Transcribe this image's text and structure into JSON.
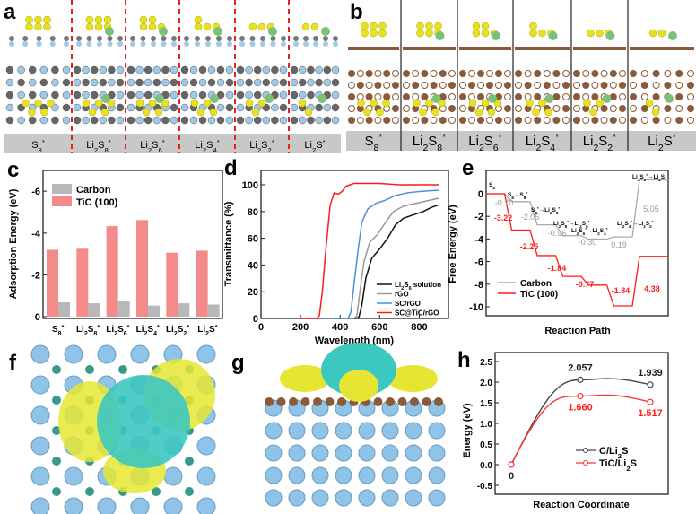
{
  "panel_labels": [
    "a",
    "b",
    "c",
    "d",
    "e",
    "f",
    "g",
    "h"
  ],
  "structures": {
    "a_labels": [
      "S8*",
      "Li2S8*",
      "Li2S6*",
      "Li2S4*",
      "Li2S2*",
      "Li2S*"
    ],
    "b_labels": [
      "S8*",
      "Li2S8*",
      "Li2S6*",
      "Li2S4*",
      "Li2S2*",
      "Li2S*"
    ]
  },
  "chart_data": [
    {
      "id": "c",
      "type": "bar",
      "categories": [
        "S8*",
        "Li2S8*",
        "Li2S6*",
        "Li2S4*",
        "Li2S2*",
        "Li2S*"
      ],
      "series": [
        {
          "name": "Carbon",
          "values": [
            -0.69,
            -0.64,
            -0.73,
            -0.53,
            -0.64,
            -0.58
          ],
          "color": "#b8b8b8"
        },
        {
          "name": "TiC (100)",
          "values": [
            -3.2,
            -3.25,
            -4.33,
            -4.62,
            -3.06,
            -3.16
          ],
          "color": "#f48a8a"
        }
      ],
      "ylabel": "Adsorption Energy (eV)",
      "ylim": [
        0,
        -7
      ],
      "yticks": [
        "-6",
        "-4",
        "-2",
        "0"
      ],
      "legend": "top-left"
    },
    {
      "id": "d",
      "type": "line",
      "xlabel": "Wavelength (nm)",
      "ylabel": "Transmittance (%)",
      "xlim": [
        0,
        900
      ],
      "ylim": [
        0,
        105
      ],
      "xticks": [
        "0",
        "200",
        "400",
        "600",
        "800"
      ],
      "yticks": [
        "0",
        "20",
        "40",
        "60",
        "80",
        "100"
      ],
      "legend": "bottom-right",
      "series": [
        {
          "name": "Li2S6 solution",
          "color": "#111111",
          "x": [
            200,
            480,
            495,
            510,
            530,
            560,
            600,
            640,
            680,
            720,
            780,
            820,
            860,
            900
          ],
          "y": [
            0,
            0,
            1,
            10,
            30,
            45,
            52,
            60,
            70,
            75,
            78,
            80,
            83,
            85
          ]
        },
        {
          "name": "rGO",
          "color": "#999999",
          "x": [
            200,
            470,
            485,
            500,
            520,
            550,
            590,
            630,
            670,
            720,
            780,
            840,
            900
          ],
          "y": [
            0,
            0,
            2,
            20,
            42,
            57,
            63,
            72,
            80,
            84,
            86,
            88,
            90
          ]
        },
        {
          "name": "SC/rGO",
          "color": "#4a90d9",
          "x": [
            200,
            440,
            455,
            470,
            490,
            510,
            540,
            580,
            620,
            680,
            740,
            800,
            900
          ],
          "y": [
            0,
            0,
            5,
            25,
            50,
            72,
            82,
            86,
            88,
            92,
            94,
            95,
            96
          ]
        },
        {
          "name": "SC@TiC/rGO",
          "color": "#ff1a1a",
          "x": [
            200,
            280,
            295,
            310,
            330,
            350,
            370,
            390,
            410,
            430,
            470,
            600,
            700,
            900
          ],
          "y": [
            0,
            0,
            2,
            20,
            55,
            85,
            94,
            93,
            95,
            99,
            101,
            101,
            100,
            100
          ]
        }
      ]
    },
    {
      "id": "e",
      "type": "line",
      "xlabel": "Reaction Path",
      "ylabel": "Free Energy (eV)",
      "ylim": [
        -11,
        1.8
      ],
      "yticks": [
        "0",
        "-2",
        "-4",
        "-6",
        "-8",
        "-10"
      ],
      "legend": "bottom-left",
      "step_labels": [
        "S8",
        "S8→S8*",
        "S8*→Li2S8*",
        "Li2S8*→Li2S6*",
        "Li2S6*→Li2S4*",
        "Li2S4*→Li2S2*",
        "Li2S2*→Li2S"
      ],
      "series": [
        {
          "name": "Carbon",
          "color": "#aaaaaa",
          "levels": [
            0,
            -0.7,
            -2.75,
            -3.71,
            -4.01,
            -3.82,
            1.23
          ],
          "labels": [
            "-0.70",
            "-2.05",
            "-0.96",
            "-0.30",
            "0.19",
            "5.05"
          ]
        },
        {
          "name": "TiC (100)",
          "color": "#ff1a1a",
          "levels": [
            0,
            -3.22,
            -5.47,
            -7.31,
            -8.08,
            -9.92,
            -5.54
          ],
          "labels": [
            "-3.22",
            "-2.25",
            "-1.84",
            "-0.77",
            "-1.84",
            "4.38"
          ]
        }
      ]
    },
    {
      "id": "h",
      "type": "line",
      "xlabel": "Reaction Coordinate",
      "ylabel": "Energy (eV)",
      "ylim": [
        -0.7,
        2.6
      ],
      "yticks": [
        "-0.5",
        "0.0",
        "0.5",
        "1.0",
        "1.5",
        "2.0",
        "2.5"
      ],
      "legend": "center-right",
      "series": [
        {
          "name": "C/Li2S",
          "color": "#444444",
          "values": [
            0,
            2.057,
            1.939
          ],
          "labels": [
            "0",
            "2.057",
            "1.939"
          ]
        },
        {
          "name": "TiC/Li2S",
          "color": "#ff3333",
          "values": [
            0,
            1.66,
            1.517
          ],
          "labels": [
            "",
            "1.660",
            "1.517"
          ]
        }
      ]
    }
  ],
  "colors": {
    "sulfur": "#e8e020",
    "lithium": "#7cc07a",
    "carbon": "#8a5a3a",
    "titanium": "#8fc3e8",
    "charge_gain": "#e6e632",
    "charge_loss": "#3cc8c0"
  }
}
